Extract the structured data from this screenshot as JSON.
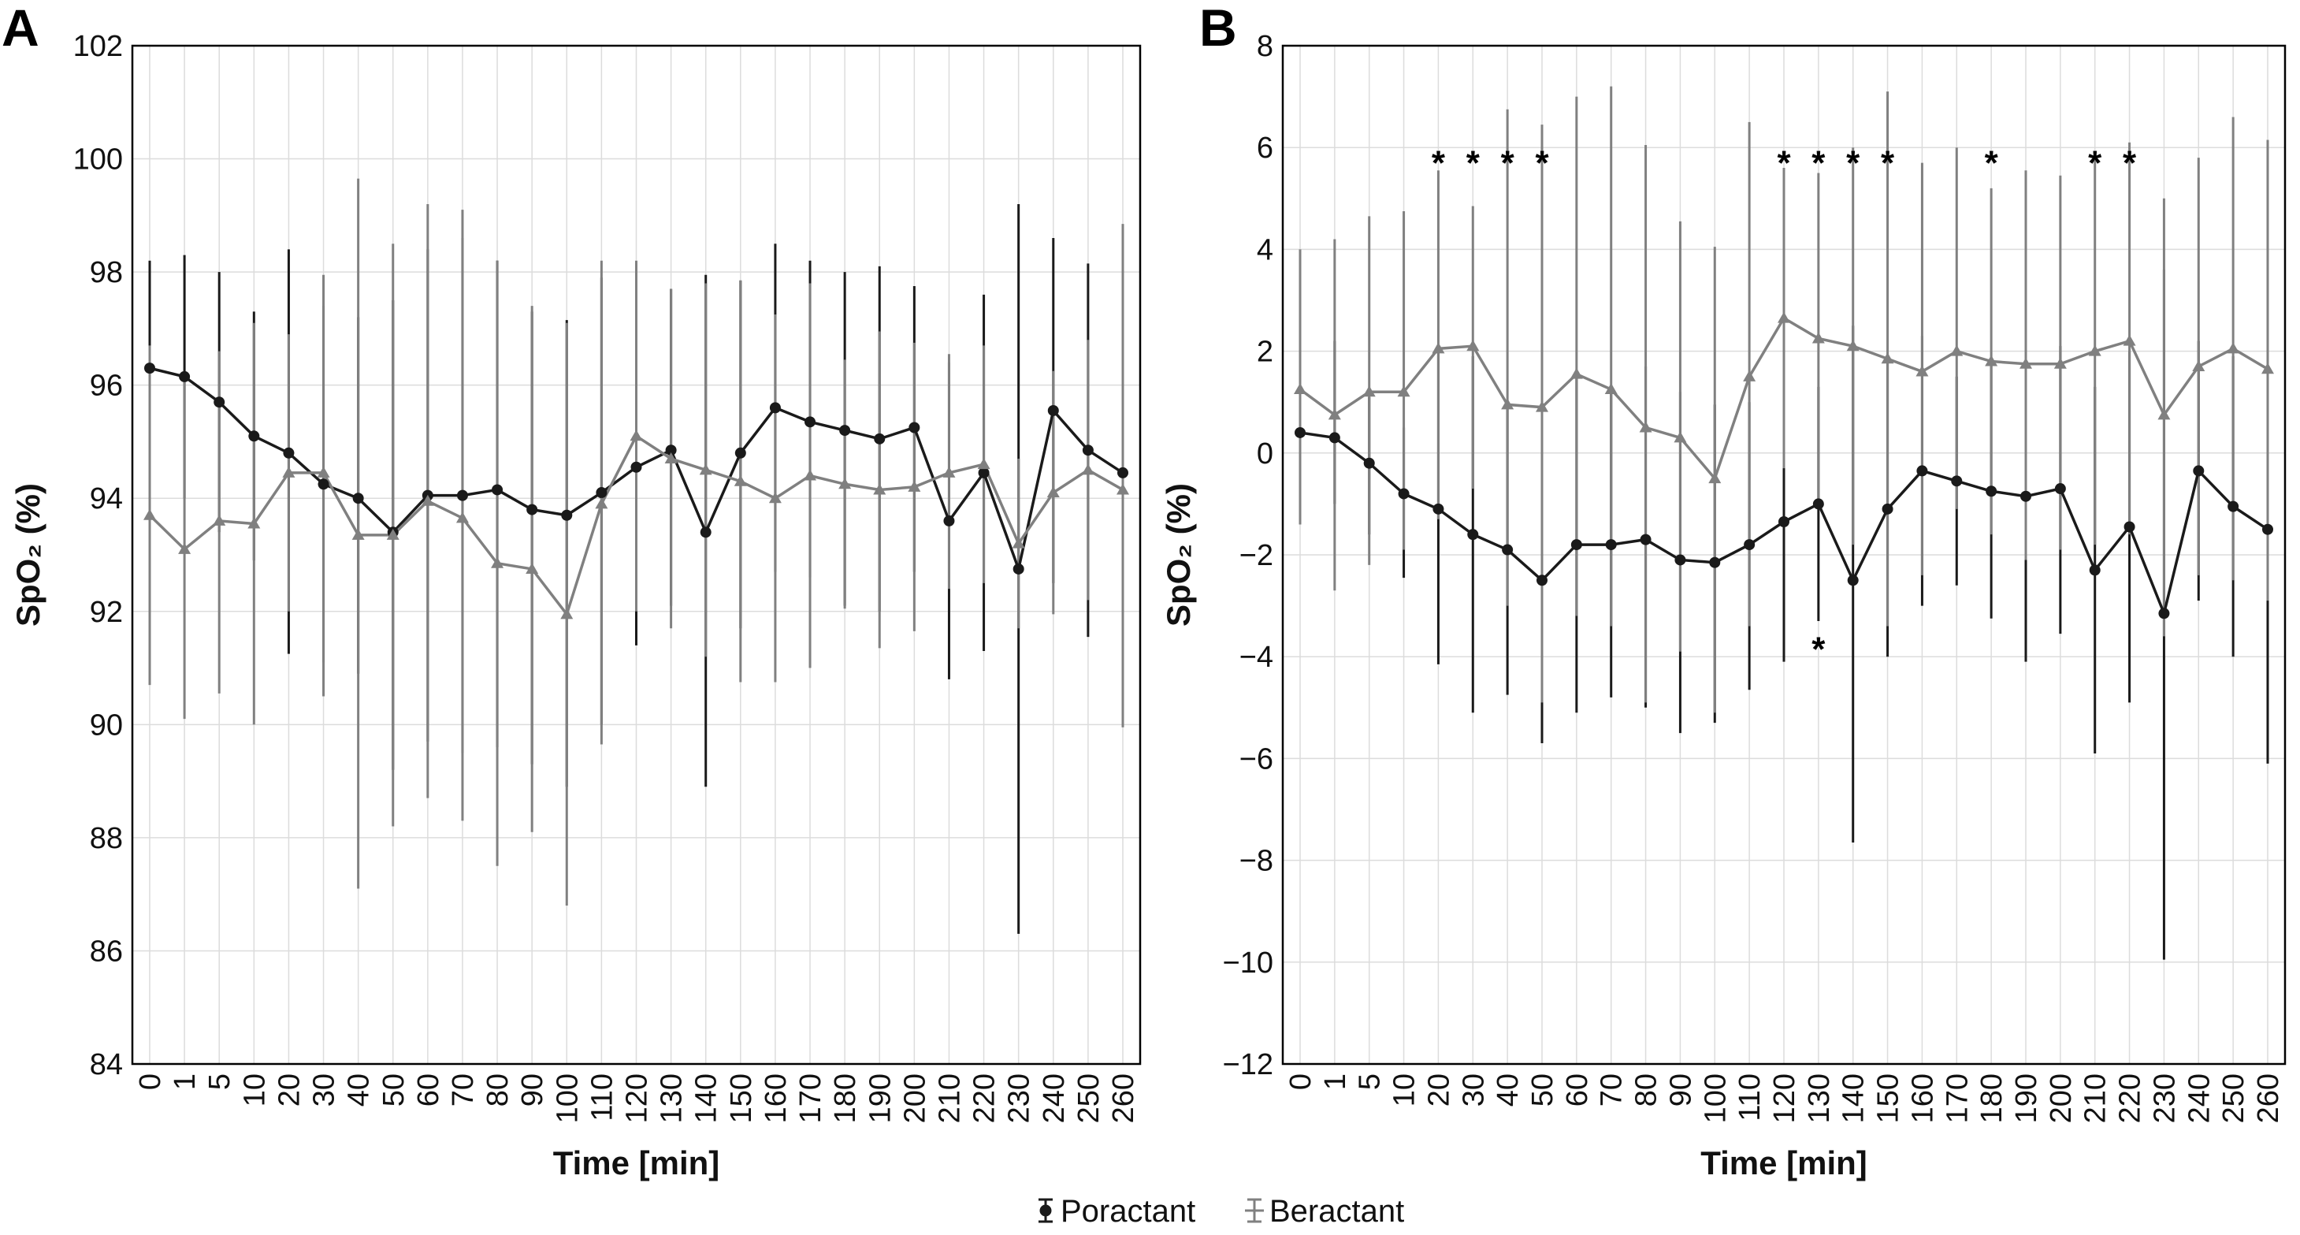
{
  "chart_data": [
    {
      "type": "line",
      "panel_label": "A",
      "xlabel": "Time [min]",
      "ylabel": "SpO₂ (%)",
      "ylim": [
        84,
        102
      ],
      "yticks": [
        84,
        86,
        88,
        90,
        92,
        94,
        96,
        98,
        100,
        102
      ],
      "categories": [
        "0",
        "1",
        "5",
        "10",
        "20",
        "30",
        "40",
        "50",
        "60",
        "70",
        "80",
        "90",
        "100",
        "110",
        "120",
        "130",
        "140",
        "150",
        "160",
        "170",
        "180",
        "190",
        "200",
        "210",
        "220",
        "230",
        "240",
        "250",
        "260"
      ],
      "grid": true,
      "series": [
        {
          "name": "Poractant",
          "color": "#1a1a1a",
          "marker": "circle",
          "values": [
            96.3,
            96.15,
            95.7,
            95.1,
            94.8,
            94.25,
            94.0,
            93.4,
            94.05,
            94.05,
            94.15,
            93.8,
            93.7,
            94.1,
            94.55,
            94.85,
            93.4,
            94.8,
            95.6,
            95.35,
            95.2,
            95.05,
            95.25,
            93.6,
            94.45,
            92.75,
            95.55,
            94.85,
            94.45
          ],
          "lower": [
            94.4,
            94.0,
            93.4,
            92.9,
            91.25,
            91.1,
            90.9,
            89.2,
            89.7,
            89.5,
            89.6,
            89.3,
            88.9,
            90.0,
            91.4,
            92.1,
            88.9,
            91.7,
            92.7,
            92.6,
            92.1,
            92.0,
            92.7,
            90.8,
            91.3,
            86.3,
            92.5,
            91.55,
            91.4
          ],
          "upper": [
            98.2,
            98.3,
            98.0,
            97.3,
            98.4,
            97.4,
            97.2,
            97.5,
            98.4,
            98.6,
            98.2,
            97.3,
            97.15,
            97.9,
            97.7,
            97.7,
            97.95,
            97.85,
            98.5,
            98.2,
            98.0,
            98.1,
            97.75,
            96.4,
            97.6,
            99.2,
            98.6,
            98.15,
            97.5
          ]
        },
        {
          "name": "Beractant",
          "color": "#808080",
          "marker": "triangle",
          "values": [
            93.7,
            93.1,
            93.6,
            93.55,
            94.45,
            94.45,
            93.35,
            93.35,
            93.95,
            93.65,
            92.85,
            92.75,
            91.95,
            93.9,
            95.1,
            94.7,
            94.5,
            94.3,
            94.0,
            94.4,
            94.25,
            94.15,
            94.2,
            94.45,
            94.6,
            93.2,
            94.1,
            94.5,
            94.15
          ],
          "lower": [
            90.7,
            90.1,
            90.55,
            90.0,
            92.0,
            90.5,
            87.1,
            88.2,
            88.7,
            88.3,
            87.5,
            88.1,
            86.8,
            89.65,
            92.0,
            91.7,
            91.2,
            90.75,
            90.75,
            91.0,
            92.05,
            91.35,
            91.65,
            92.4,
            92.5,
            91.7,
            91.95,
            92.2,
            89.95
          ],
          "upper": [
            96.7,
            96.2,
            96.6,
            97.1,
            96.9,
            97.95,
            99.65,
            98.5,
            99.2,
            99.1,
            98.2,
            97.4,
            97.1,
            98.2,
            98.2,
            97.7,
            97.8,
            97.85,
            97.25,
            97.8,
            96.45,
            96.95,
            96.75,
            96.55,
            96.7,
            94.7,
            96.25,
            96.8,
            98.85
          ]
        }
      ],
      "annotations": []
    },
    {
      "type": "line",
      "panel_label": "B",
      "xlabel": "Time [min]",
      "ylabel": "SpO₂ (%)",
      "ylim": [
        -12,
        8
      ],
      "yticks": [
        -12,
        -10,
        -8,
        -6,
        -4,
        -2,
        0,
        2,
        4,
        6,
        8
      ],
      "categories": [
        "0",
        "1",
        "5",
        "10",
        "20",
        "30",
        "40",
        "50",
        "60",
        "70",
        "80",
        "90",
        "100",
        "110",
        "120",
        "130",
        "140",
        "150",
        "160",
        "170",
        "180",
        "190",
        "200",
        "210",
        "220",
        "230",
        "240",
        "250",
        "260"
      ],
      "grid": true,
      "series": [
        {
          "name": "Poractant",
          "color": "#1a1a1a",
          "marker": "circle",
          "values": [
            0.4,
            0.3,
            -0.2,
            -0.8,
            -1.1,
            -1.6,
            -1.9,
            -2.5,
            -1.8,
            -1.8,
            -1.7,
            -2.1,
            -2.15,
            -1.8,
            -1.35,
            -1.0,
            -2.5,
            -1.1,
            -0.35,
            -0.55,
            -0.75,
            -0.85,
            -0.7,
            -2.3,
            -1.45,
            -3.15,
            -0.35,
            -1.05,
            -1.5
          ],
          "lower": [
            -1.4,
            -1.0,
            -1.6,
            -2.45,
            -4.15,
            -5.1,
            -4.75,
            -5.7,
            -5.1,
            -4.8,
            -5.0,
            -5.5,
            -5.3,
            -4.65,
            -4.1,
            -3.3,
            -7.65,
            -4.0,
            -3.0,
            -2.6,
            -3.25,
            -4.1,
            -3.55,
            -5.9,
            -4.9,
            -9.95,
            -2.9,
            -4.0,
            -6.1
          ],
          "upper": [
            2.9,
            2.2,
            1.1,
            0.5,
            2.0,
            1.9,
            1.0,
            0.8,
            1.5,
            1.2,
            1.7,
            1.2,
            0.95,
            1.0,
            1.4,
            1.3,
            2.5,
            1.8,
            2.3,
            1.5,
            1.8,
            2.4,
            2.1,
            1.3,
            2.0,
            3.6,
            2.2,
            1.9,
            3.1
          ]
        },
        {
          "name": "Beractant",
          "color": "#808080",
          "marker": "triangle",
          "values": [
            1.25,
            0.75,
            1.2,
            1.2,
            2.05,
            2.1,
            0.95,
            0.9,
            1.55,
            1.25,
            0.5,
            0.3,
            -0.5,
            1.5,
            2.65,
            2.25,
            2.1,
            1.85,
            1.6,
            2.0,
            1.8,
            1.75,
            1.75,
            2.0,
            2.2,
            0.75,
            1.7,
            2.05,
            1.65
          ],
          "lower": [
            -1.4,
            -2.7,
            -2.2,
            -1.9,
            -1.3,
            -0.7,
            -3.0,
            -4.9,
            -3.2,
            -3.4,
            -4.9,
            -3.9,
            -5.1,
            -3.4,
            -0.3,
            -1.0,
            -1.8,
            -3.4,
            -2.4,
            -1.1,
            -1.6,
            -2.1,
            -1.9,
            -1.8,
            -1.6,
            -3.6,
            -2.4,
            -2.5,
            -2.9
          ],
          "upper": [
            4.0,
            4.2,
            4.65,
            4.75,
            5.55,
            4.85,
            6.75,
            6.45,
            7.0,
            7.2,
            6.05,
            4.55,
            4.05,
            6.5,
            5.6,
            5.5,
            6.0,
            7.1,
            5.7,
            6.0,
            5.2,
            5.55,
            5.45,
            5.8,
            6.1,
            5.0,
            5.8,
            6.6,
            6.15
          ]
        }
      ],
      "annotations": [
        {
          "text": "*",
          "category": "20",
          "y": 5.9
        },
        {
          "text": "*",
          "category": "30",
          "y": 5.9
        },
        {
          "text": "*",
          "category": "40",
          "y": 5.9
        },
        {
          "text": "*",
          "category": "50",
          "y": 5.9
        },
        {
          "text": "*",
          "category": "120",
          "y": 5.9
        },
        {
          "text": "*",
          "category": "130",
          "y": 5.9
        },
        {
          "text": "*",
          "category": "140",
          "y": 5.9
        },
        {
          "text": "*",
          "category": "150",
          "y": 5.9
        },
        {
          "text": "*",
          "category": "180",
          "y": 5.9
        },
        {
          "text": "*",
          "category": "210",
          "y": 5.9
        },
        {
          "text": "*",
          "category": "220",
          "y": 5.9
        },
        {
          "text": "*",
          "category": "130",
          "y": -3.65
        }
      ]
    }
  ],
  "legend": {
    "placement": "bottom-center",
    "items": [
      {
        "label": "Poractant",
        "color": "#1a1a1a"
      },
      {
        "label": "Beractant",
        "color": "#808080"
      }
    ]
  }
}
